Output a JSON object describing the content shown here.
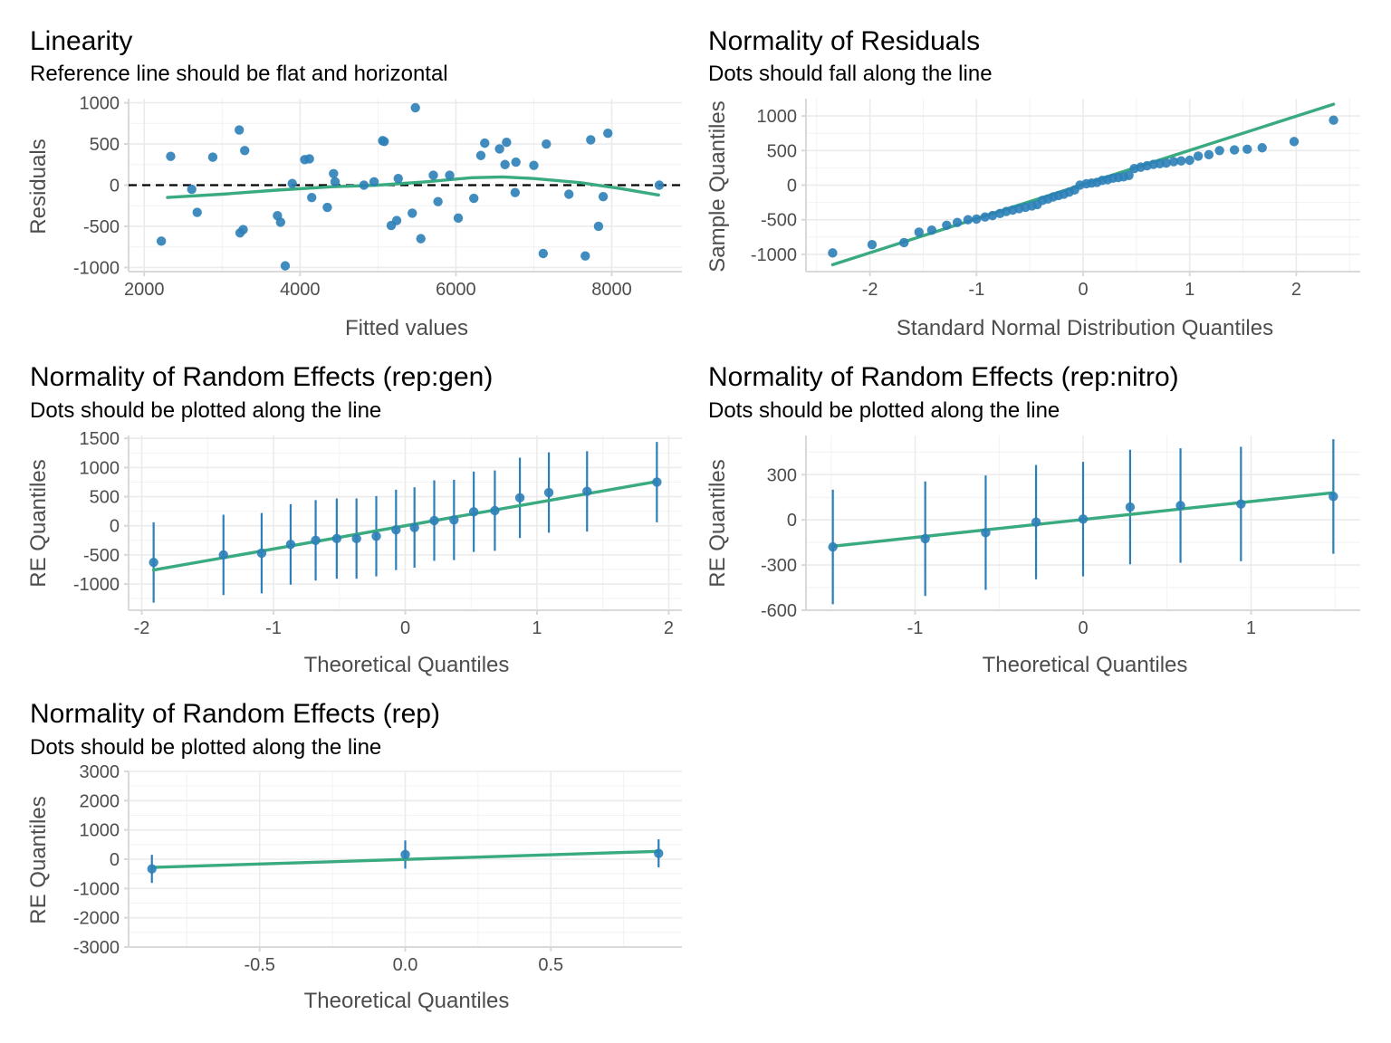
{
  "colors": {
    "points": "#2c7fb8",
    "fit_line": "#3aaa80",
    "ref_line": "#000000"
  },
  "chart_data": [
    {
      "id": "linearity",
      "type": "scatter",
      "title": "Linearity",
      "subtitle": "Reference line should be flat and horizontal",
      "xlabel": "Fitted values",
      "ylabel": "Residuals",
      "xlim": [
        1800,
        8900
      ],
      "ylim": [
        -1050,
        1050
      ],
      "xticks": [
        2000,
        4000,
        6000,
        8000
      ],
      "yticks": [
        -1000,
        -500,
        0,
        500,
        1000
      ],
      "x_tick_labels": [
        "2000",
        "4000",
        "6000",
        "8000"
      ],
      "y_tick_labels": [
        "-1000",
        "-500",
        "0",
        "500",
        "1000"
      ],
      "reference_line": 0,
      "points": [
        [
          2220,
          -680
        ],
        [
          2340,
          350
        ],
        [
          2610,
          -50
        ],
        [
          2680,
          -330
        ],
        [
          2880,
          340
        ],
        [
          3220,
          670
        ],
        [
          3230,
          -580
        ],
        [
          3270,
          -540
        ],
        [
          3290,
          420
        ],
        [
          3710,
          -370
        ],
        [
          3750,
          -450
        ],
        [
          3810,
          -980
        ],
        [
          3900,
          20
        ],
        [
          4060,
          310
        ],
        [
          4120,
          320
        ],
        [
          4150,
          -150
        ],
        [
          4350,
          -270
        ],
        [
          4430,
          140
        ],
        [
          4450,
          40
        ],
        [
          4820,
          0
        ],
        [
          4950,
          40
        ],
        [
          5060,
          540
        ],
        [
          5080,
          530
        ],
        [
          5170,
          -490
        ],
        [
          5240,
          -430
        ],
        [
          5260,
          80
        ],
        [
          5440,
          -340
        ],
        [
          5480,
          940
        ],
        [
          5550,
          -650
        ],
        [
          5710,
          120
        ],
        [
          5770,
          -200
        ],
        [
          5920,
          120
        ],
        [
          6030,
          -400
        ],
        [
          6230,
          -160
        ],
        [
          6320,
          360
        ],
        [
          6370,
          510
        ],
        [
          6560,
          440
        ],
        [
          6630,
          250
        ],
        [
          6650,
          520
        ],
        [
          6760,
          -90
        ],
        [
          6770,
          280
        ],
        [
          7000,
          240
        ],
        [
          7120,
          -830
        ],
        [
          7160,
          500
        ],
        [
          7450,
          -110
        ],
        [
          7660,
          -860
        ],
        [
          7730,
          550
        ],
        [
          7830,
          -500
        ],
        [
          7890,
          -140
        ],
        [
          7950,
          630
        ],
        [
          8610,
          0
        ]
      ],
      "fit_line": [
        [
          2300,
          -150
        ],
        [
          3000,
          -110
        ],
        [
          3700,
          -60
        ],
        [
          4400,
          -20
        ],
        [
          5000,
          0
        ],
        [
          5600,
          40
        ],
        [
          6200,
          90
        ],
        [
          6600,
          100
        ],
        [
          7000,
          80
        ],
        [
          7600,
          30
        ],
        [
          8100,
          -40
        ],
        [
          8600,
          -120
        ]
      ]
    },
    {
      "id": "normality-residuals",
      "type": "scatter",
      "title": "Normality of Residuals",
      "subtitle": "Dots should fall along the line",
      "xlabel": "Standard Normal Distribution Quantiles",
      "ylabel": "Sample Quantiles",
      "xlim": [
        -2.6,
        2.6
      ],
      "ylim": [
        -1250,
        1250
      ],
      "xticks": [
        -2,
        -1,
        0,
        1,
        2
      ],
      "yticks": [
        -1000,
        -500,
        0,
        500,
        1000
      ],
      "x_tick_labels": [
        "-2",
        "-1",
        "0",
        "1",
        "2"
      ],
      "y_tick_labels": [
        "-1000",
        "-500",
        "0",
        "500",
        "1000"
      ],
      "points": [
        [
          -2.35,
          -980
        ],
        [
          -1.98,
          -860
        ],
        [
          -1.68,
          -830
        ],
        [
          -1.54,
          -680
        ],
        [
          -1.42,
          -650
        ],
        [
          -1.28,
          -580
        ],
        [
          -1.18,
          -540
        ],
        [
          -1.08,
          -500
        ],
        [
          -1.0,
          -490
        ],
        [
          -0.92,
          -460
        ],
        [
          -0.85,
          -440
        ],
        [
          -0.78,
          -410
        ],
        [
          -0.72,
          -380
        ],
        [
          -0.66,
          -360
        ],
        [
          -0.6,
          -340
        ],
        [
          -0.54,
          -320
        ],
        [
          -0.48,
          -300
        ],
        [
          -0.43,
          -280
        ],
        [
          -0.38,
          -220
        ],
        [
          -0.33,
          -200
        ],
        [
          -0.28,
          -170
        ],
        [
          -0.23,
          -150
        ],
        [
          -0.18,
          -130
        ],
        [
          -0.13,
          -100
        ],
        [
          -0.08,
          -70
        ],
        [
          -0.03,
          0
        ],
        [
          0.03,
          20
        ],
        [
          0.08,
          30
        ],
        [
          0.13,
          40
        ],
        [
          0.18,
          70
        ],
        [
          0.23,
          80
        ],
        [
          0.28,
          100
        ],
        [
          0.33,
          110
        ],
        [
          0.38,
          120
        ],
        [
          0.43,
          140
        ],
        [
          0.48,
          240
        ],
        [
          0.54,
          260
        ],
        [
          0.6,
          280
        ],
        [
          0.66,
          300
        ],
        [
          0.72,
          310
        ],
        [
          0.78,
          320
        ],
        [
          0.85,
          340
        ],
        [
          0.92,
          350
        ],
        [
          1.0,
          360
        ],
        [
          1.08,
          420
        ],
        [
          1.18,
          440
        ],
        [
          1.28,
          500
        ],
        [
          1.42,
          510
        ],
        [
          1.54,
          520
        ],
        [
          1.68,
          540
        ],
        [
          1.98,
          630
        ],
        [
          2.35,
          940
        ]
      ],
      "fit_line": [
        [
          -2.35,
          -1150
        ],
        [
          2.35,
          1170
        ]
      ]
    },
    {
      "id": "re-rep-gen",
      "type": "scatter",
      "title": "Normality of Random Effects (rep:gen)",
      "subtitle": "Dots should be plotted along the line",
      "xlabel": "Theoretical Quantiles",
      "ylabel": "RE Quantiles",
      "xlim": [
        -2.1,
        2.1
      ],
      "ylim": [
        -1450,
        1550
      ],
      "xticks": [
        -2,
        -1,
        0,
        1,
        2
      ],
      "yticks": [
        -1000,
        -500,
        0,
        500,
        1000,
        1500
      ],
      "x_tick_labels": [
        "-2",
        "-1",
        "0",
        "1",
        "2"
      ],
      "y_tick_labels": [
        "-1000",
        "-500",
        "0",
        "500",
        "1000",
        "1500"
      ],
      "points": [
        {
          "x": -1.91,
          "y": -630,
          "lo": -1320,
          "hi": 60
        },
        {
          "x": -1.38,
          "y": -500,
          "lo": -1190,
          "hi": 190
        },
        {
          "x": -1.09,
          "y": -470,
          "lo": -1160,
          "hi": 220
        },
        {
          "x": -0.87,
          "y": -320,
          "lo": -1010,
          "hi": 370
        },
        {
          "x": -0.68,
          "y": -250,
          "lo": -940,
          "hi": 440
        },
        {
          "x": -0.52,
          "y": -220,
          "lo": -910,
          "hi": 470
        },
        {
          "x": -0.37,
          "y": -220,
          "lo": -910,
          "hi": 470
        },
        {
          "x": -0.22,
          "y": -180,
          "lo": -870,
          "hi": 510
        },
        {
          "x": -0.07,
          "y": -70,
          "lo": -760,
          "hi": 620
        },
        {
          "x": 0.07,
          "y": -30,
          "lo": -720,
          "hi": 660
        },
        {
          "x": 0.22,
          "y": 90,
          "lo": -600,
          "hi": 780
        },
        {
          "x": 0.37,
          "y": 100,
          "lo": -590,
          "hi": 790
        },
        {
          "x": 0.52,
          "y": 240,
          "lo": -450,
          "hi": 930
        },
        {
          "x": 0.68,
          "y": 260,
          "lo": -430,
          "hi": 950
        },
        {
          "x": 0.87,
          "y": 480,
          "lo": -210,
          "hi": 1170
        },
        {
          "x": 1.09,
          "y": 570,
          "lo": -120,
          "hi": 1260
        },
        {
          "x": 1.38,
          "y": 590,
          "lo": -100,
          "hi": 1280
        },
        {
          "x": 1.91,
          "y": 750,
          "lo": 60,
          "hi": 1440
        }
      ],
      "fit_line": [
        [
          -1.91,
          -760
        ],
        [
          1.91,
          760
        ]
      ]
    },
    {
      "id": "re-rep-nitro",
      "type": "scatter",
      "title": "Normality of Random Effects (rep:nitro)",
      "subtitle": "Dots should be plotted along the line",
      "xlabel": "Theoretical Quantiles",
      "ylabel": "RE Quantiles",
      "xlim": [
        -1.65,
        1.65
      ],
      "ylim": [
        -600,
        560
      ],
      "xticks": [
        -1,
        0,
        1
      ],
      "yticks": [
        -600,
        -300,
        0,
        300
      ],
      "x_tick_labels": [
        "-1",
        "0",
        "1"
      ],
      "y_tick_labels": [
        "-600",
        "-300",
        "0",
        "300"
      ],
      "points": [
        {
          "x": -1.49,
          "y": -180,
          "lo": -560,
          "hi": 200
        },
        {
          "x": -0.94,
          "y": -125,
          "lo": -505,
          "hi": 255
        },
        {
          "x": -0.58,
          "y": -85,
          "lo": -465,
          "hi": 295
        },
        {
          "x": -0.28,
          "y": -15,
          "lo": -395,
          "hi": 365
        },
        {
          "x": 0.0,
          "y": 5,
          "lo": -375,
          "hi": 385
        },
        {
          "x": 0.28,
          "y": 85,
          "lo": -295,
          "hi": 465
        },
        {
          "x": 0.58,
          "y": 95,
          "lo": -285,
          "hi": 475
        },
        {
          "x": 0.94,
          "y": 105,
          "lo": -275,
          "hi": 485
        },
        {
          "x": 1.49,
          "y": 155,
          "lo": -225,
          "hi": 535
        }
      ],
      "fit_line": [
        [
          -1.49,
          -175
        ],
        [
          1.49,
          180
        ]
      ]
    },
    {
      "id": "re-rep",
      "type": "scatter",
      "title": "Normality of Random Effects (rep)",
      "subtitle": "Dots should be plotted along the line",
      "xlabel": "Theoretical Quantiles",
      "ylabel": "RE Quantiles",
      "xlim": [
        -0.95,
        0.95
      ],
      "ylim": [
        -3000,
        3000
      ],
      "xticks": [
        -0.5,
        0.0,
        0.5
      ],
      "yticks": [
        -3000,
        -2000,
        -1000,
        0,
        1000,
        2000,
        3000
      ],
      "x_tick_labels": [
        "-0.5",
        "0.0",
        "0.5"
      ],
      "y_tick_labels": [
        "-3000",
        "-2000",
        "-1000",
        "0",
        "1000",
        "2000",
        "3000"
      ],
      "points": [
        {
          "x": -0.87,
          "y": -330,
          "lo": -810,
          "hi": 150
        },
        {
          "x": 0.0,
          "y": 160,
          "lo": -320,
          "hi": 640
        },
        {
          "x": 0.87,
          "y": 200,
          "lo": -280,
          "hi": 680
        }
      ],
      "fit_line": [
        [
          -0.87,
          -280
        ],
        [
          0.87,
          270
        ]
      ]
    }
  ]
}
